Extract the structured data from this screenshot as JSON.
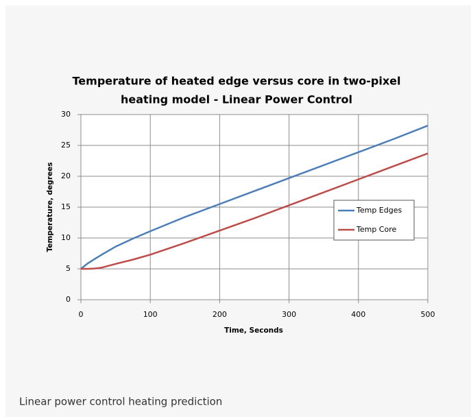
{
  "chart_data": {
    "type": "line",
    "title": [
      "Temperature of heated edge versus core in two-pixel",
      "heating model - Linear Power Control"
    ],
    "x_label": "Time, Seconds",
    "y_label": "Temperature, degrees",
    "x": [
      0,
      10,
      20,
      30,
      50,
      75,
      100,
      150,
      200,
      250,
      300,
      350,
      400,
      450,
      500
    ],
    "series": [
      {
        "name": "Temp Edges",
        "color": "#4a7ebb",
        "values": [
          5,
          5.9,
          6.6,
          7.3,
          8.6,
          9.9,
          11.1,
          13.4,
          15.5,
          17.6,
          19.7,
          21.8,
          23.9,
          26.0,
          28.2
        ]
      },
      {
        "name": "Temp Core",
        "color": "#be4b48",
        "values": [
          5,
          5.0,
          5.05,
          5.2,
          5.8,
          6.5,
          7.3,
          9.2,
          11.2,
          13.2,
          15.3,
          17.4,
          19.5,
          21.6,
          23.7
        ]
      }
    ],
    "xlim": [
      0,
      500
    ],
    "xticks": [
      0,
      100,
      200,
      300,
      400,
      500
    ],
    "ylim": [
      0,
      30
    ],
    "yticks": [
      0,
      5,
      10,
      15,
      20,
      25,
      30
    ],
    "grid": true,
    "legend": "right"
  },
  "caption": "Linear power control heating prediction"
}
